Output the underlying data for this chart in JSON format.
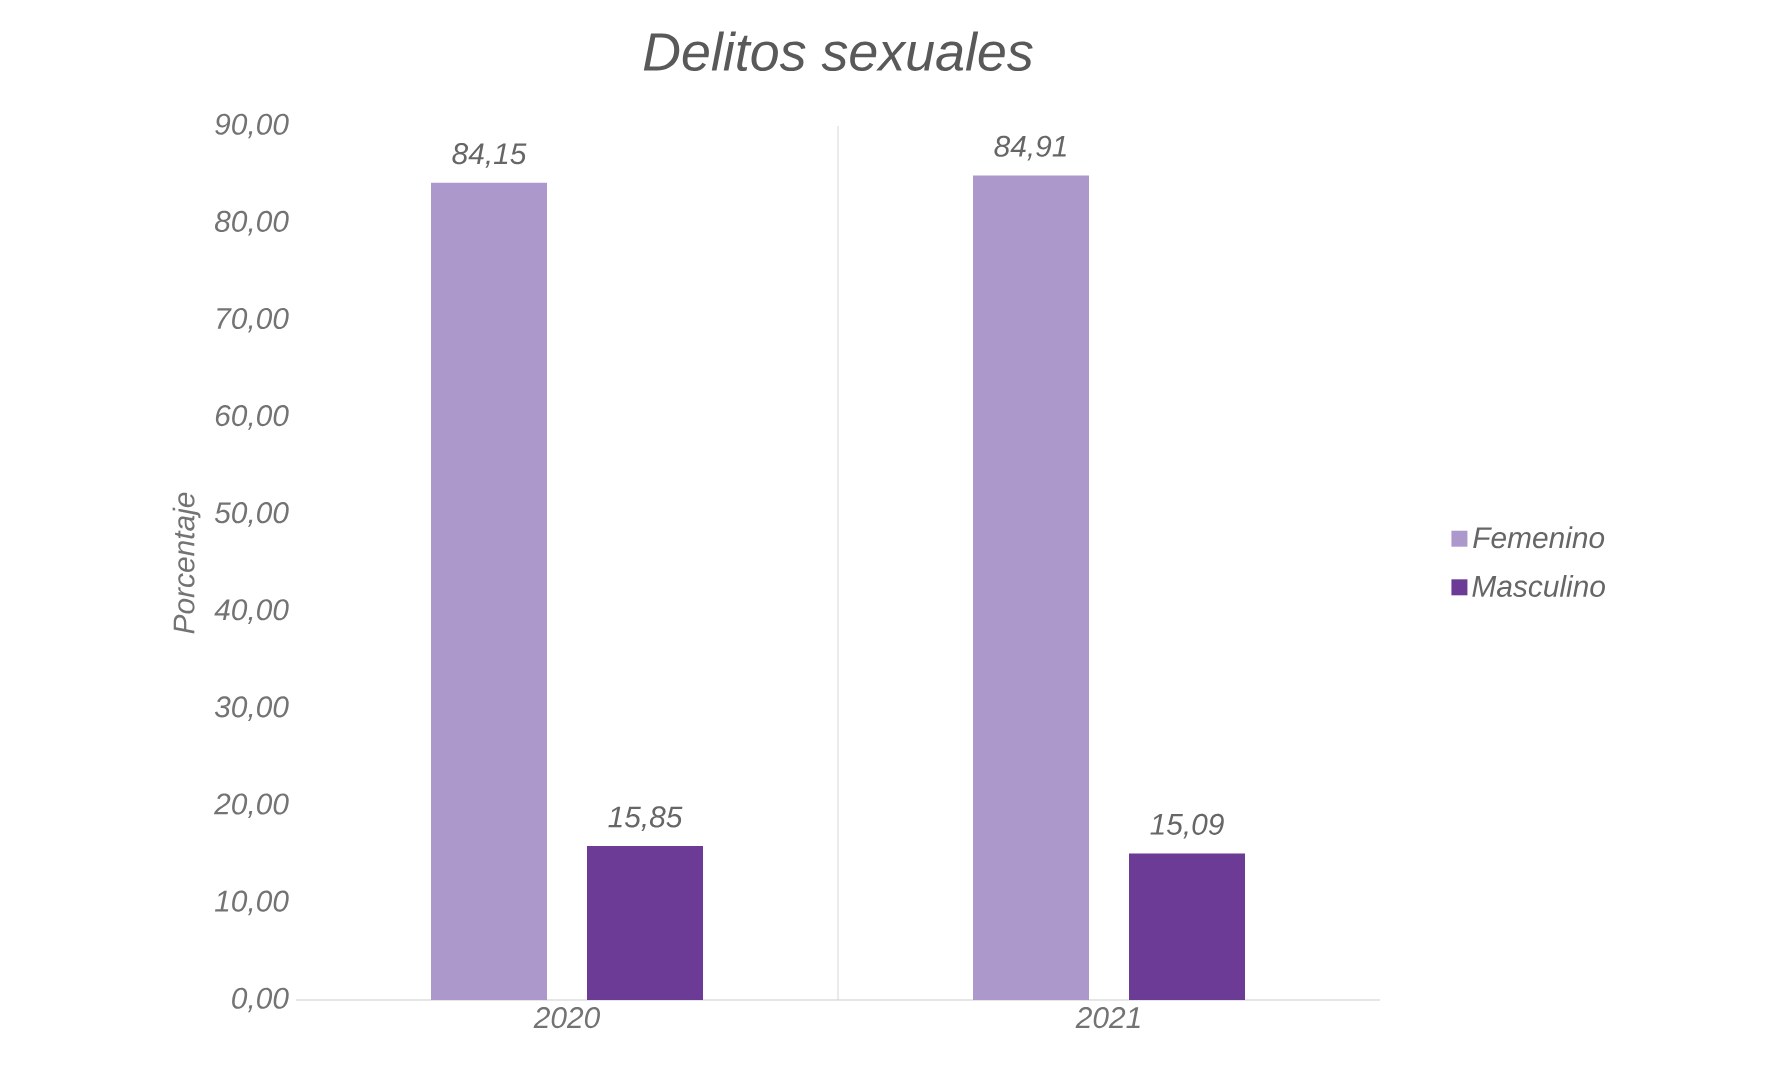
{
  "chart_data": {
    "type": "bar",
    "title": "Delitos sexuales",
    "ylabel": "Porcentaje",
    "categories": [
      "2020",
      "2021"
    ],
    "series": [
      {
        "name": "Femenino",
        "color": "#ad98cc",
        "values": [
          84.15,
          84.91
        ],
        "value_labels": [
          "84,15",
          "84,91"
        ]
      },
      {
        "name": "Masculino",
        "color": "#6b3b95",
        "values": [
          15.85,
          15.09
        ],
        "value_labels": [
          "15,85",
          "15,09"
        ]
      }
    ],
    "ylim": [
      0,
      90
    ],
    "yticks": [
      {
        "value": 0,
        "label": "0,00"
      },
      {
        "value": 10,
        "label": "10,00"
      },
      {
        "value": 20,
        "label": "20,00"
      },
      {
        "value": 30,
        "label": "30,00"
      },
      {
        "value": 40,
        "label": "40,00"
      },
      {
        "value": 50,
        "label": "50,00"
      },
      {
        "value": 60,
        "label": "60,00"
      },
      {
        "value": 70,
        "label": "70,00"
      },
      {
        "value": 80,
        "label": "80,00"
      },
      {
        "value": 90,
        "label": "90,00"
      }
    ],
    "grid": "x",
    "legend": "right"
  }
}
